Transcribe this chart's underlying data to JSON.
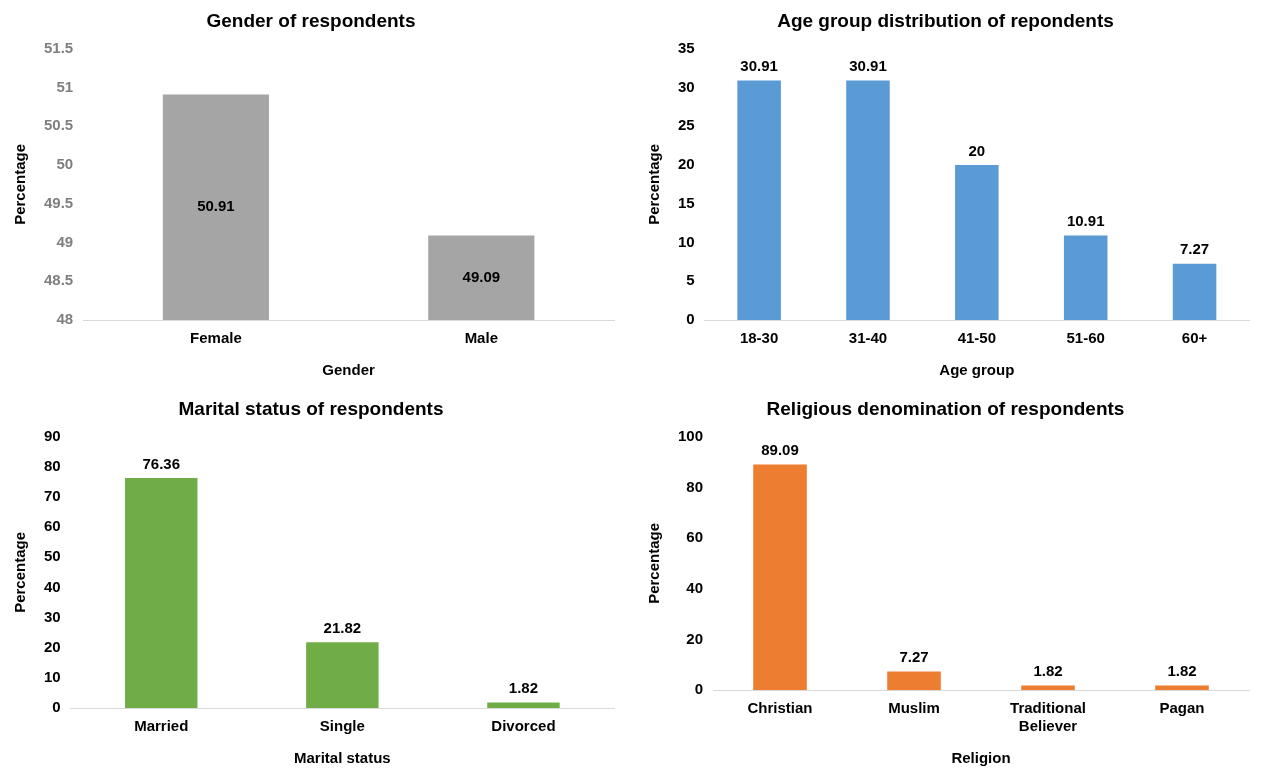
{
  "chart_data": [
    {
      "type": "bar",
      "title": "Gender of respondents",
      "xlabel": "Gender",
      "ylabel": "Percentage",
      "categories": [
        "Female",
        "Male"
      ],
      "values": [
        50.91,
        49.09
      ],
      "color": "#a5a5a5",
      "ylim": [
        48,
        51.5
      ],
      "yticks": [
        48,
        48.5,
        49,
        49.5,
        50,
        50.5,
        51,
        51.5
      ],
      "grid": false,
      "data_labels": true
    },
    {
      "type": "bar",
      "title": "Age group distribution of repondents",
      "xlabel": "Age group",
      "ylabel": "Percentage",
      "categories": [
        "18-30",
        "31-40",
        "41-50",
        "51-60",
        "60+"
      ],
      "values": [
        30.91,
        30.91,
        20,
        10.91,
        7.27
      ],
      "color": "#5b9bd5",
      "ylim": [
        0,
        35
      ],
      "yticks": [
        0,
        5,
        10,
        15,
        20,
        25,
        30,
        35
      ],
      "grid": false,
      "data_labels": true
    },
    {
      "type": "bar",
      "title": "Marital status of respondents",
      "xlabel": "Marital status",
      "ylabel": "Percentage",
      "categories": [
        "Married",
        "Single",
        "Divorced"
      ],
      "values": [
        76.36,
        21.82,
        1.82
      ],
      "color": "#70ad47",
      "ylim": [
        0,
        90
      ],
      "yticks": [
        0,
        10,
        20,
        30,
        40,
        50,
        60,
        70,
        80,
        90
      ],
      "grid": false,
      "data_labels": true
    },
    {
      "type": "bar",
      "title": "Religious denomination of respondents",
      "xlabel": "Religion",
      "ylabel": "Percentage",
      "categories": [
        "Christian",
        "Muslim",
        "Traditional Believer",
        "Pagan"
      ],
      "values": [
        89.09,
        7.27,
        1.82,
        1.82
      ],
      "color": "#ed7d31",
      "ylim": [
        0,
        100
      ],
      "yticks": [
        0,
        20,
        40,
        60,
        80,
        100
      ],
      "grid": false,
      "data_labels": true
    }
  ]
}
